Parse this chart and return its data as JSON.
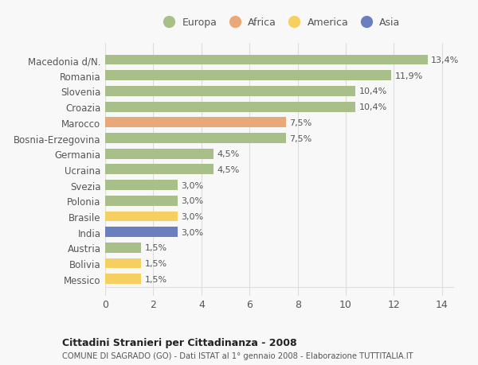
{
  "categories": [
    "Messico",
    "Bolivia",
    "Austria",
    "India",
    "Brasile",
    "Polonia",
    "Svezia",
    "Ucraina",
    "Germania",
    "Bosnia-Erzegovina",
    "Marocco",
    "Croazia",
    "Slovenia",
    "Romania",
    "Macedonia d/N."
  ],
  "values": [
    1.5,
    1.5,
    1.5,
    3.0,
    3.0,
    3.0,
    3.0,
    4.5,
    4.5,
    7.5,
    7.5,
    10.4,
    10.4,
    11.9,
    13.4
  ],
  "labels": [
    "1,5%",
    "1,5%",
    "1,5%",
    "3,0%",
    "3,0%",
    "3,0%",
    "3,0%",
    "4,5%",
    "4,5%",
    "7,5%",
    "7,5%",
    "10,4%",
    "10,4%",
    "11,9%",
    "13,4%"
  ],
  "colors": [
    "#f5d060",
    "#f5d060",
    "#a8bf8a",
    "#6b7fbf",
    "#f5d060",
    "#a8bf8a",
    "#a8bf8a",
    "#a8bf8a",
    "#a8bf8a",
    "#a8bf8a",
    "#e8a878",
    "#a8bf8a",
    "#a8bf8a",
    "#a8bf8a",
    "#a8bf8a"
  ],
  "legend_labels": [
    "Europa",
    "Africa",
    "America",
    "Asia"
  ],
  "legend_colors": [
    "#a8bf8a",
    "#e8a878",
    "#f5d060",
    "#6b7fbf"
  ],
  "title": "Cittadini Stranieri per Cittadinanza - 2008",
  "subtitle": "COMUNE DI SAGRADO (GO) - Dati ISTAT al 1° gennaio 2008 - Elaborazione TUTTITALIA.IT",
  "xlim": [
    0,
    14.5
  ],
  "xticks": [
    0,
    2,
    4,
    6,
    8,
    10,
    12,
    14
  ],
  "background_color": "#f8f8f8",
  "grid_color": "#dddddd",
  "text_color": "#555555",
  "bar_height": 0.65
}
